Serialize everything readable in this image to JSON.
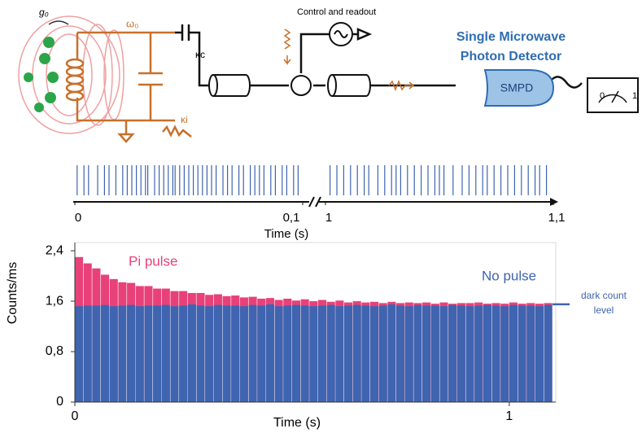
{
  "diagram": {
    "g0": "g₀",
    "omega0": "ω₀",
    "kappa_c": "κc",
    "kappa_i": "κi",
    "control": "Control and readout",
    "detector_title": [
      "Single Microwave",
      "Photon Detector"
    ],
    "smpd": "SMPD",
    "meter_low": "0",
    "meter_high": "1"
  },
  "chart_data": [
    {
      "type": "event",
      "xlabel": "Time (s)",
      "color": "#3f64b0",
      "segments": [
        {
          "xlim": [
            0,
            0.1
          ],
          "xticks": [
            0,
            {
              "value": 0.1,
              "label": "0,1"
            }
          ],
          "events": [
            0.001,
            0.004,
            0.006,
            0.01,
            0.013,
            0.015,
            0.018,
            0.021,
            0.023,
            0.025,
            0.027,
            0.029,
            0.031,
            0.032,
            0.035,
            0.037,
            0.039,
            0.041,
            0.043,
            0.044,
            0.046,
            0.048,
            0.05,
            0.052,
            0.054,
            0.056,
            0.058,
            0.06,
            0.062,
            0.065,
            0.067,
            0.069,
            0.072,
            0.074,
            0.077,
            0.079,
            0.081,
            0.083,
            0.086,
            0.088,
            0.091,
            0.093,
            0.096,
            0.098
          ]
        },
        {
          "xlim": [
            1,
            1.1
          ],
          "xticks": [
            1,
            {
              "value": 1.1,
              "label": "1,1"
            }
          ],
          "events": [
            1.002,
            1.005,
            1.008,
            1.011,
            1.014,
            1.017,
            1.019,
            1.023,
            1.026,
            1.029,
            1.031,
            1.033,
            1.036,
            1.039,
            1.042,
            1.045,
            1.048,
            1.05,
            1.052,
            1.056,
            1.06,
            1.063,
            1.066,
            1.069,
            1.071,
            1.074,
            1.077,
            1.08,
            1.083,
            1.086,
            1.089,
            1.092,
            1.094,
            1.097
          ]
        }
      ]
    },
    {
      "type": "histogram",
      "xlabel": "Time (s)",
      "ylabel": "Counts/ms",
      "xlim": [
        0,
        1.107
      ],
      "xticks": [
        0,
        1
      ],
      "ylim": [
        0,
        2.53
      ],
      "yticks": [
        0,
        {
          "value": 0.8,
          "label": "0,8"
        },
        {
          "value": 1.6,
          "label": "1,6"
        },
        {
          "value": 2.4,
          "label": "2,4"
        }
      ],
      "bins": [
        0,
        0.02,
        0.04,
        0.06,
        0.08,
        0.1,
        0.12,
        0.14,
        0.16,
        0.18,
        0.2,
        0.22,
        0.24,
        0.26,
        0.28,
        0.3,
        0.32,
        0.34,
        0.36,
        0.38,
        0.4,
        0.42,
        0.44,
        0.46,
        0.48,
        0.5,
        0.52,
        0.54,
        0.56,
        0.58,
        0.6,
        0.62,
        0.64,
        0.66,
        0.68,
        0.7,
        0.72,
        0.74,
        0.76,
        0.78,
        0.8,
        0.82,
        0.84,
        0.86,
        0.88,
        0.9,
        0.92,
        0.94,
        0.96,
        0.98,
        1.0,
        1.02,
        1.04,
        1.06,
        1.08,
        1.1
      ],
      "series": [
        {
          "name": "Pi pulse",
          "color": "#e8417a",
          "values": [
            2.3,
            2.2,
            2.12,
            2.02,
            1.95,
            1.9,
            1.89,
            1.84,
            1.84,
            1.8,
            1.8,
            1.76,
            1.76,
            1.73,
            1.73,
            1.7,
            1.71,
            1.68,
            1.69,
            1.66,
            1.67,
            1.64,
            1.65,
            1.62,
            1.64,
            1.61,
            1.63,
            1.6,
            1.62,
            1.59,
            1.61,
            1.58,
            1.6,
            1.58,
            1.59,
            1.57,
            1.59,
            1.57,
            1.58,
            1.57,
            1.58,
            1.56,
            1.58,
            1.56,
            1.57,
            1.57,
            1.58,
            1.56,
            1.57,
            1.56,
            1.58,
            1.56,
            1.57,
            1.56,
            1.57
          ]
        },
        {
          "name": "No pulse",
          "color": "#3f64b0",
          "values": [
            1.52,
            1.53,
            1.53,
            1.54,
            1.52,
            1.53,
            1.54,
            1.52,
            1.53,
            1.53,
            1.54,
            1.52,
            1.53,
            1.55,
            1.53,
            1.52,
            1.54,
            1.53,
            1.53,
            1.52,
            1.54,
            1.53,
            1.55,
            1.52,
            1.53,
            1.54,
            1.53,
            1.52,
            1.53,
            1.54,
            1.52,
            1.53,
            1.54,
            1.53,
            1.52,
            1.53,
            1.55,
            1.53,
            1.52,
            1.54,
            1.53,
            1.53,
            1.52,
            1.54,
            1.53,
            1.52,
            1.53,
            1.54,
            1.53,
            1.52,
            1.54,
            1.53,
            1.53,
            1.52,
            1.54
          ]
        }
      ],
      "dark_count": {
        "value": 1.55,
        "text": [
          "dark count",
          "level"
        ],
        "color": "#3f64b0"
      }
    }
  ]
}
